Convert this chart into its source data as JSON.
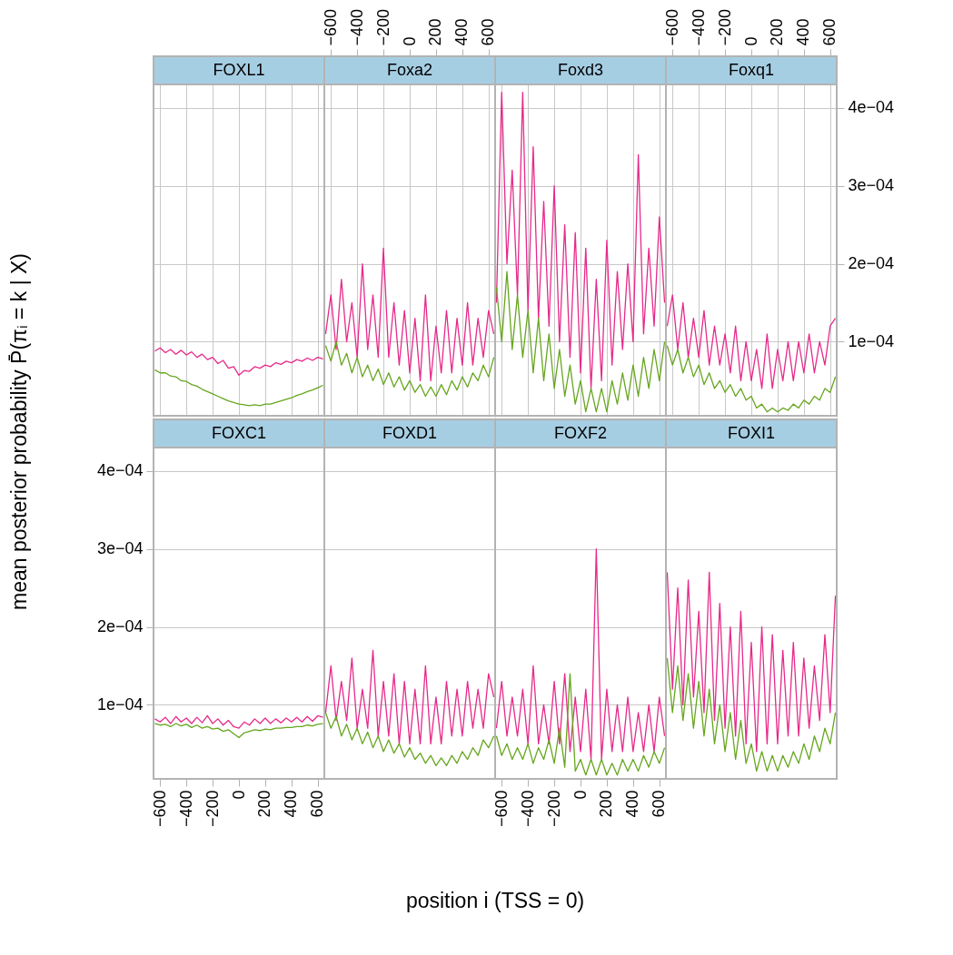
{
  "chart_data": [
    {
      "type": "line",
      "title": "FOXL1",
      "ylabel": "mean posterior probability  P̄(πᵢ = k | X)",
      "xlabel": "position  i (TSS = 0)",
      "tick_labels": false,
      "grid": true,
      "xlim": [
        -650,
        650
      ],
      "ylim": [
        5e-06,
        0.00043
      ],
      "xticks": [
        -600,
        -400,
        -200,
        0,
        200,
        400,
        600
      ],
      "yticks": [
        0.0001,
        0.0002,
        0.0003,
        0.0004
      ],
      "x": [
        -640,
        -600,
        -560,
        -520,
        -480,
        -440,
        -400,
        -360,
        -320,
        -280,
        -240,
        -200,
        -160,
        -120,
        -80,
        -40,
        0,
        40,
        80,
        120,
        160,
        200,
        240,
        280,
        320,
        360,
        400,
        440,
        480,
        520,
        560,
        600,
        640
      ],
      "series": [
        {
          "color": "#e7298a",
          "values": [
            8.8e-05,
            9.2e-05,
            8.6e-05,
            9e-05,
            8.4e-05,
            8.9e-05,
            8.3e-05,
            8.7e-05,
            8e-05,
            8.4e-05,
            7.7e-05,
            8e-05,
            7.2e-05,
            7.6e-05,
            6.6e-05,
            6.8e-05,
            5.7e-05,
            6.3e-05,
            6.2e-05,
            6.8e-05,
            6.6e-05,
            7e-05,
            6.8e-05,
            7.3e-05,
            7.1e-05,
            7.5e-05,
            7.3e-05,
            7.7e-05,
            7.5e-05,
            7.9e-05,
            7.6e-05,
            8e-05,
            7.8e-05
          ]
        },
        {
          "color": "#66a61e",
          "values": [
            6.4e-05,
            6e-05,
            6e-05,
            5.6e-05,
            5.5e-05,
            5e-05,
            4.9e-05,
            4.5e-05,
            4.3e-05,
            3.9e-05,
            3.6e-05,
            3.3e-05,
            3e-05,
            2.7e-05,
            2.4e-05,
            2.2e-05,
            2e-05,
            1.9e-05,
            1.8e-05,
            1.9e-05,
            1.8e-05,
            2e-05,
            2e-05,
            2.2e-05,
            2.4e-05,
            2.6e-05,
            2.8e-05,
            3.1e-05,
            3.3e-05,
            3.6e-05,
            3.8e-05,
            4.1e-05,
            4.4e-05
          ]
        }
      ]
    },
    {
      "type": "line",
      "title": "Foxa2",
      "tick_labels": "x",
      "grid": true,
      "xlim": [
        -650,
        650
      ],
      "ylim": [
        5e-06,
        0.00043
      ],
      "xticks": [
        {
          "value": -600,
          "label": "−600"
        },
        {
          "value": -400,
          "label": "−400"
        },
        {
          "value": -200,
          "label": "−200"
        },
        0,
        200,
        400,
        600
      ],
      "yticks": [
        0.0001,
        0.0002,
        0.0003,
        0.0004
      ],
      "x": [
        -640,
        -600,
        -560,
        -520,
        -480,
        -440,
        -400,
        -360,
        -320,
        -280,
        -240,
        -200,
        -160,
        -120,
        -80,
        -40,
        0,
        40,
        80,
        120,
        160,
        200,
        240,
        280,
        320,
        360,
        400,
        440,
        480,
        520,
        560,
        600,
        640
      ],
      "series": [
        {
          "color": "#e7298a",
          "values": [
            0.00011,
            0.00016,
            9e-05,
            0.00018,
            0.0001,
            0.00015,
            8e-05,
            0.0002,
            9e-05,
            0.00016,
            8e-05,
            0.00022,
            8e-05,
            0.00015,
            7e-05,
            0.00014,
            6e-05,
            0.00013,
            5e-05,
            0.00016,
            5e-05,
            0.00012,
            6e-05,
            0.00014,
            6e-05,
            0.00013,
            7e-05,
            0.00015,
            7e-05,
            0.00013,
            8e-05,
            0.00014,
            0.00011
          ]
        },
        {
          "color": "#66a61e",
          "values": [
            9.5e-05,
            7.5e-05,
            0.0001,
            7e-05,
            8.5e-05,
            6e-05,
            8e-05,
            5.5e-05,
            7e-05,
            5e-05,
            6.5e-05,
            4.5e-05,
            6e-05,
            4.2e-05,
            5.5e-05,
            3.8e-05,
            5e-05,
            3.5e-05,
            4.5e-05,
            3e-05,
            4.2e-05,
            3e-05,
            4.5e-05,
            3.2e-05,
            5e-05,
            3.8e-05,
            5.5e-05,
            4.2e-05,
            6e-05,
            5e-05,
            7e-05,
            5.5e-05,
            8e-05
          ]
        }
      ]
    },
    {
      "type": "line",
      "title": "Foxd3",
      "tick_labels": false,
      "grid": true,
      "xlim": [
        -650,
        650
      ],
      "ylim": [
        5e-06,
        0.00043
      ],
      "xticks": [
        -600,
        -400,
        -200,
        0,
        200,
        400,
        600
      ],
      "yticks": [
        0.0001,
        0.0002,
        0.0003,
        0.0004
      ],
      "x": [
        -640,
        -600,
        -560,
        -520,
        -480,
        -440,
        -400,
        -360,
        -320,
        -280,
        -240,
        -200,
        -160,
        -120,
        -80,
        -40,
        0,
        40,
        80,
        120,
        160,
        200,
        240,
        280,
        320,
        360,
        400,
        440,
        480,
        520,
        560,
        600,
        640
      ],
      "series": [
        {
          "color": "#e7298a",
          "values": [
            0.00015,
            0.00042,
            0.0002,
            0.00032,
            0.00016,
            0.00042,
            0.00014,
            0.00035,
            0.00013,
            0.00028,
            0.00012,
            0.0003,
            0.0001,
            0.00025,
            8e-05,
            0.00024,
            6e-05,
            0.00022,
            4e-05,
            0.00018,
            5e-05,
            0.00023,
            7e-05,
            0.00019,
            9e-05,
            0.0002,
            0.0001,
            0.00034,
            0.00011,
            0.00022,
            0.00012,
            0.00026,
            0.00015
          ]
        },
        {
          "color": "#66a61e",
          "values": [
            0.00017,
            0.0001,
            0.00019,
            9e-05,
            0.00016,
            8e-05,
            0.00014,
            6e-05,
            0.00013,
            5e-05,
            0.00011,
            4e-05,
            9e-05,
            3e-05,
            7e-05,
            2e-05,
            5e-05,
            1e-05,
            4e-05,
            1e-05,
            4e-05,
            1e-05,
            5e-05,
            2e-05,
            6e-05,
            2.5e-05,
            7e-05,
            3e-05,
            8e-05,
            4e-05,
            9e-05,
            5e-05,
            0.0001
          ]
        }
      ]
    },
    {
      "type": "line",
      "title": "Foxq1",
      "grid": true,
      "xlim": [
        -650,
        650
      ],
      "ylim": [
        5e-06,
        0.00043
      ],
      "xticks": [
        {
          "value": -600,
          "label": "−600"
        },
        {
          "value": -400,
          "label": "−400"
        },
        {
          "value": -200,
          "label": "−200"
        },
        0,
        200,
        400,
        600
      ],
      "yticks": [
        {
          "value": 0.0001,
          "label": "1e−04"
        },
        {
          "value": 0.0002,
          "label": "2e−04"
        },
        {
          "value": 0.0003,
          "label": "3e−04"
        },
        {
          "value": 0.0004,
          "label": "4e−04"
        }
      ],
      "x": [
        -640,
        -600,
        -560,
        -520,
        -480,
        -440,
        -400,
        -360,
        -320,
        -280,
        -240,
        -200,
        -160,
        -120,
        -80,
        -40,
        0,
        40,
        80,
        120,
        160,
        200,
        240,
        280,
        320,
        360,
        400,
        440,
        480,
        520,
        560,
        600,
        640
      ],
      "series": [
        {
          "color": "#e7298a",
          "values": [
            0.00012,
            0.00016,
            9e-05,
            0.00015,
            8e-05,
            0.00013,
            8e-05,
            0.00014,
            7e-05,
            0.00012,
            7e-05,
            0.00011,
            6e-05,
            0.00012,
            5e-05,
            0.0001,
            5e-05,
            9e-05,
            4e-05,
            0.00011,
            4e-05,
            9e-05,
            5e-05,
            0.0001,
            5e-05,
            0.0001,
            6e-05,
            0.00011,
            6e-05,
            0.0001,
            7e-05,
            0.00012,
            0.00013
          ]
        },
        {
          "color": "#66a61e",
          "values": [
            9.5e-05,
            7e-05,
            9e-05,
            6e-05,
            8e-05,
            5.5e-05,
            7e-05,
            4.5e-05,
            6e-05,
            4e-05,
            5e-05,
            3.5e-05,
            4.5e-05,
            3e-05,
            4e-05,
            2.5e-05,
            3e-05,
            1.5e-05,
            2e-05,
            1e-05,
            1.5e-05,
            1e-05,
            1.5e-05,
            1.2e-05,
            2e-05,
            1.5e-05,
            2.5e-05,
            2e-05,
            3e-05,
            2.5e-05,
            4e-05,
            3.5e-05,
            5.5e-05
          ]
        }
      ]
    },
    {
      "type": "line",
      "title": "FOXC1",
      "grid": true,
      "xlim": [
        -650,
        650
      ],
      "ylim": [
        5e-06,
        0.00043
      ],
      "xticks": [
        {
          "value": -600,
          "label": "−600"
        },
        {
          "value": -400,
          "label": "−400"
        },
        {
          "value": -200,
          "label": "−200"
        },
        0,
        200,
        400,
        600
      ],
      "yticks": [
        {
          "value": 0.0001,
          "label": "1e−04"
        },
        {
          "value": 0.0002,
          "label": "2e−04"
        },
        {
          "value": 0.0003,
          "label": "3e−04"
        },
        {
          "value": 0.0004,
          "label": "4e−04"
        }
      ],
      "x": [
        -640,
        -600,
        -560,
        -520,
        -480,
        -440,
        -400,
        -360,
        -320,
        -280,
        -240,
        -200,
        -160,
        -120,
        -80,
        -40,
        0,
        40,
        80,
        120,
        160,
        200,
        240,
        280,
        320,
        360,
        400,
        440,
        480,
        520,
        560,
        600,
        640
      ],
      "series": [
        {
          "color": "#e7298a",
          "values": [
            8.2e-05,
            7.8e-05,
            8.4e-05,
            7.6e-05,
            8.5e-05,
            7.8e-05,
            8.3e-05,
            7.6e-05,
            8.4e-05,
            7.7e-05,
            8.6e-05,
            7.6e-05,
            8.2e-05,
            7.4e-05,
            8e-05,
            7.2e-05,
            7e-05,
            7.8e-05,
            7.4e-05,
            8.2e-05,
            7.6e-05,
            8.3e-05,
            7.6e-05,
            8.2e-05,
            7.7e-05,
            8.3e-05,
            7.8e-05,
            8.4e-05,
            7.8e-05,
            8.5e-05,
            7.9e-05,
            8.6e-05,
            8.4e-05
          ]
        },
        {
          "color": "#66a61e",
          "values": [
            7.6e-05,
            7.4e-05,
            7.5e-05,
            7.2e-05,
            7.6e-05,
            7.3e-05,
            7.5e-05,
            7.1e-05,
            7.4e-05,
            7e-05,
            7.2e-05,
            6.9e-05,
            7e-05,
            6.6e-05,
            6.8e-05,
            6.3e-05,
            5.8e-05,
            6.4e-05,
            6.6e-05,
            6.8e-05,
            6.7e-05,
            6.9e-05,
            6.8e-05,
            7e-05,
            7e-05,
            7.1e-05,
            7.1e-05,
            7.2e-05,
            7.2e-05,
            7.4e-05,
            7.3e-05,
            7.5e-05,
            7.6e-05
          ]
        }
      ]
    },
    {
      "type": "line",
      "title": "FOXD1",
      "tick_labels": false,
      "grid": true,
      "xlim": [
        -650,
        650
      ],
      "ylim": [
        5e-06,
        0.00043
      ],
      "xticks": [
        -600,
        -400,
        -200,
        0,
        200,
        400,
        600
      ],
      "yticks": [
        0.0001,
        0.0002,
        0.0003,
        0.0004
      ],
      "x": [
        -640,
        -600,
        -560,
        -520,
        -480,
        -440,
        -400,
        -360,
        -320,
        -280,
        -240,
        -200,
        -160,
        -120,
        -80,
        -40,
        0,
        40,
        80,
        120,
        160,
        200,
        240,
        280,
        320,
        360,
        400,
        440,
        480,
        520,
        560,
        600,
        640
      ],
      "series": [
        {
          "color": "#e7298a",
          "values": [
            9e-05,
            0.00015,
            8e-05,
            0.00013,
            8e-05,
            0.00016,
            7e-05,
            0.00012,
            7e-05,
            0.00017,
            6e-05,
            0.00013,
            6e-05,
            0.00014,
            5e-05,
            0.00013,
            5e-05,
            0.00012,
            5e-05,
            0.00015,
            5e-05,
            0.00011,
            5e-05,
            0.00013,
            6e-05,
            0.00012,
            6e-05,
            0.00013,
            7e-05,
            0.00012,
            7e-05,
            0.00014,
            0.00011
          ]
        },
        {
          "color": "#66a61e",
          "values": [
            9e-05,
            7e-05,
            8.5e-05,
            6e-05,
            7.5e-05,
            5.5e-05,
            7e-05,
            5e-05,
            6.5e-05,
            4.5e-05,
            6e-05,
            4e-05,
            5.5e-05,
            3.8e-05,
            5e-05,
            3.3e-05,
            4.5e-05,
            3e-05,
            3.8e-05,
            2.5e-05,
            3.5e-05,
            2.2e-05,
            3.2e-05,
            2.2e-05,
            3.5e-05,
            2.5e-05,
            4e-05,
            3e-05,
            4.5e-05,
            3.5e-05,
            5.5e-05,
            4.5e-05,
            6e-05
          ]
        }
      ]
    },
    {
      "type": "line",
      "title": "FOXF2",
      "tick_labels": "x",
      "grid": true,
      "xlim": [
        -650,
        650
      ],
      "ylim": [
        5e-06,
        0.00043
      ],
      "xticks": [
        {
          "value": -600,
          "label": "−600"
        },
        {
          "value": -400,
          "label": "−400"
        },
        {
          "value": -200,
          "label": "−200"
        },
        0,
        200,
        400,
        600
      ],
      "yticks": [
        0.0001,
        0.0002,
        0.0003,
        0.0004
      ],
      "x": [
        -640,
        -600,
        -560,
        -520,
        -480,
        -440,
        -400,
        -360,
        -320,
        -280,
        -240,
        -200,
        -160,
        -120,
        -80,
        -40,
        0,
        40,
        80,
        120,
        160,
        200,
        240,
        280,
        320,
        360,
        400,
        440,
        480,
        520,
        560,
        600,
        640
      ],
      "series": [
        {
          "color": "#e7298a",
          "values": [
            7e-05,
            0.00013,
            6e-05,
            0.00011,
            6e-05,
            0.00012,
            5e-05,
            0.00015,
            5e-05,
            0.0001,
            5e-05,
            0.00013,
            5e-05,
            0.00014,
            4e-05,
            0.00011,
            4e-05,
            0.00012,
            3e-05,
            0.0003,
            3e-05,
            0.00012,
            4e-05,
            0.0001,
            4e-05,
            0.00011,
            4e-05,
            9e-05,
            4e-05,
            0.0001,
            4e-05,
            0.00011,
            6e-05
          ]
        },
        {
          "color": "#66a61e",
          "values": [
            6e-05,
            3.5e-05,
            5e-05,
            3e-05,
            4.5e-05,
            3e-05,
            5e-05,
            2.5e-05,
            4.5e-05,
            3e-05,
            5.5e-05,
            2.5e-05,
            7e-05,
            2e-05,
            0.00014,
            1.5e-05,
            3e-05,
            1e-05,
            3e-05,
            1e-05,
            3e-05,
            1e-05,
            2.5e-05,
            1e-05,
            3e-05,
            1.5e-05,
            3e-05,
            1.5e-05,
            3.5e-05,
            2e-05,
            4e-05,
            2.5e-05,
            4.5e-05
          ]
        }
      ]
    },
    {
      "type": "line",
      "title": "FOXI1",
      "tick_labels": false,
      "grid": true,
      "xlim": [
        -650,
        650
      ],
      "ylim": [
        5e-06,
        0.00043
      ],
      "xticks": [
        -600,
        -400,
        -200,
        0,
        200,
        400,
        600
      ],
      "yticks": [
        0.0001,
        0.0002,
        0.0003,
        0.0004
      ],
      "x": [
        -640,
        -600,
        -560,
        -520,
        -480,
        -440,
        -400,
        -360,
        -320,
        -280,
        -240,
        -200,
        -160,
        -120,
        -80,
        -40,
        0,
        40,
        80,
        120,
        160,
        200,
        240,
        280,
        320,
        360,
        400,
        440,
        480,
        520,
        560,
        600,
        640
      ],
      "series": [
        {
          "color": "#e7298a",
          "values": [
            0.00027,
            0.00012,
            0.00025,
            0.0001,
            0.00026,
            0.00011,
            0.00022,
            9e-05,
            0.00027,
            8e-05,
            0.00023,
            7e-05,
            0.0002,
            6e-05,
            0.00022,
            5e-05,
            0.00018,
            4e-05,
            0.0002,
            5e-05,
            0.00019,
            5e-05,
            0.00017,
            6e-05,
            0.00018,
            6e-05,
            0.00016,
            7e-05,
            0.00015,
            8e-05,
            0.00019,
            9e-05,
            0.00024
          ]
        },
        {
          "color": "#66a61e",
          "values": [
            0.00016,
            9e-05,
            0.00015,
            8e-05,
            0.00014,
            7e-05,
            0.00013,
            6e-05,
            0.00012,
            5e-05,
            0.0001,
            4e-05,
            9e-05,
            3e-05,
            8e-05,
            2.5e-05,
            5e-05,
            1.5e-05,
            4e-05,
            1.5e-05,
            3.5e-05,
            1.5e-05,
            3.5e-05,
            2e-05,
            4e-05,
            2.5e-05,
            5e-05,
            3e-05,
            6e-05,
            4e-05,
            7e-05,
            5e-05,
            9e-05
          ]
        }
      ]
    }
  ]
}
